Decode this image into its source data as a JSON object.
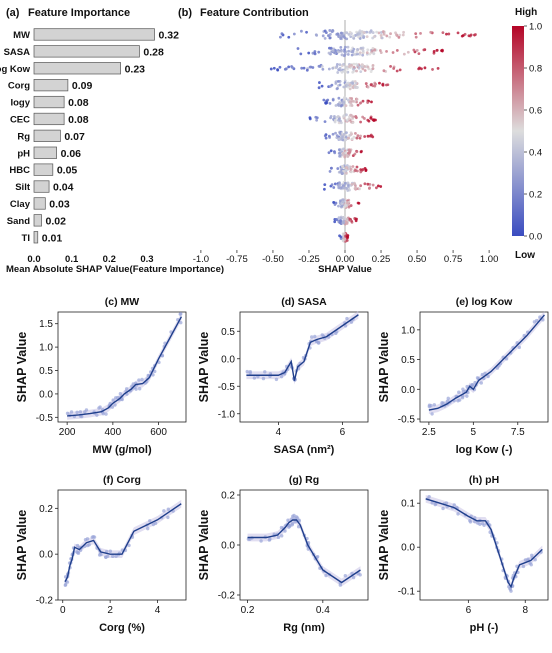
{
  "panel_a": {
    "label": "(a)",
    "title": "Feature Importance",
    "xlabel": "Mean Absolute SHAP Value(Feature Importance)",
    "bar_color": "#d3d3d3"
  },
  "panel_b": {
    "label": "(b)",
    "title": "Feature Contribution",
    "xlabel": "SHAP Value",
    "colorbar": {
      "high_label": "High",
      "low_label": "Low",
      "ticks": [
        0.0,
        0.2,
        0.4,
        0.6,
        0.8,
        1.0
      ],
      "low_color": "#3a4cc0",
      "mid_color": "#dddddd",
      "high_color": "#b40426"
    }
  },
  "chart_data": [
    {
      "id": "a",
      "type": "bar",
      "orientation": "horizontal",
      "categories": [
        "MW",
        "SASA",
        "log Kow",
        "Corg",
        "Iogy",
        "CEC",
        "Rg",
        "pH",
        "HBC",
        "Silt",
        "Clay",
        "Sand",
        "TI"
      ],
      "values": [
        0.32,
        0.28,
        0.23,
        0.09,
        0.08,
        0.08,
        0.07,
        0.06,
        0.05,
        0.04,
        0.03,
        0.02,
        0.01
      ],
      "value_labels": [
        "0.32",
        "0.28",
        "0.23",
        "0.09",
        "0.08",
        "0.08",
        "0.07",
        "0.06",
        "0.05",
        "0.04",
        "0.03",
        "0.02",
        "0.01"
      ],
      "xticks": [
        "0.0",
        "0.1",
        "0.2",
        "0.3"
      ],
      "xlim": [
        0,
        0.34
      ]
    },
    {
      "id": "b",
      "type": "scatter",
      "subtype": "beeswarm",
      "features": [
        "MW",
        "SASA",
        "log Kow",
        "Corg",
        "Iogy",
        "CEC",
        "Rg",
        "pH",
        "HBC",
        "Silt",
        "Clay",
        "Sand",
        "TI"
      ],
      "shap_range": [
        [
          -0.48,
          0.92
        ],
        [
          -0.35,
          0.72
        ],
        [
          -0.52,
          0.65
        ],
        [
          -0.18,
          0.3
        ],
        [
          -0.15,
          0.2
        ],
        [
          -0.25,
          0.22
        ],
        [
          -0.15,
          0.2
        ],
        [
          -0.12,
          0.12
        ],
        [
          -0.12,
          0.15
        ],
        [
          -0.15,
          0.25
        ],
        [
          -0.1,
          0.1
        ],
        [
          -0.08,
          0.08
        ],
        [
          -0.04,
          0.02
        ]
      ],
      "xticks": [
        "-1.0",
        "-0.75",
        "-0.50",
        "-0.25",
        "0.00",
        "0.25",
        "0.50",
        "0.75",
        "1.00"
      ],
      "xlim": [
        -1.02,
        1.02
      ]
    },
    {
      "id": "c",
      "label": "(c)",
      "title": "MW",
      "type": "line",
      "xlabel": "MW (g/mol)",
      "ylabel": "SHAP Value",
      "x": [
        200,
        250,
        300,
        350,
        380,
        400,
        430,
        450,
        480,
        500,
        530,
        560,
        600,
        650,
        700
      ],
      "y": [
        -0.47,
        -0.45,
        -0.42,
        -0.38,
        -0.3,
        -0.2,
        -0.1,
        0.0,
        0.1,
        0.2,
        0.22,
        0.35,
        0.75,
        1.2,
        1.65
      ],
      "xticks": [
        200,
        400,
        600
      ],
      "yticks": [
        -0.5,
        0.0,
        0.5,
        1.0,
        1.5
      ],
      "xlim": [
        160,
        720
      ],
      "ylim": [
        -0.6,
        1.75
      ]
    },
    {
      "id": "d",
      "label": "(d)",
      "title": "SASA",
      "type": "line",
      "xlabel": "SASA (nm²)",
      "ylabel": "SHAP Value",
      "x": [
        3.0,
        3.5,
        4.0,
        4.2,
        4.4,
        4.5,
        4.6,
        4.8,
        5.0,
        5.2,
        5.5,
        6.0,
        6.5
      ],
      "y": [
        -0.3,
        -0.3,
        -0.3,
        -0.25,
        -0.05,
        -0.4,
        -0.15,
        -0.05,
        0.3,
        0.35,
        0.4,
        0.6,
        0.8
      ],
      "xticks": [
        4,
        6
      ],
      "yticks": [
        -1.0,
        -0.5,
        0.0,
        0.5
      ],
      "xlim": [
        2.8,
        6.8
      ],
      "ylim": [
        -1.15,
        0.85
      ]
    },
    {
      "id": "e",
      "label": "(e)",
      "title": "log Kow",
      "type": "line",
      "xlabel": "log Kow (-)",
      "ylabel": "SHAP Value",
      "x": [
        2.5,
        3.0,
        3.5,
        4.0,
        4.3,
        4.6,
        4.8,
        5.0,
        5.3,
        6.0,
        7.0,
        8.0,
        9.0
      ],
      "y": [
        -0.35,
        -0.32,
        -0.25,
        -0.15,
        -0.1,
        -0.05,
        0.05,
        0.0,
        0.15,
        0.3,
        0.6,
        0.9,
        1.25
      ],
      "xticks": [
        2.5,
        5.0,
        7.5
      ],
      "yticks": [
        -0.5,
        0.0,
        0.5,
        1.0
      ],
      "xlim": [
        2.0,
        9.2
      ],
      "ylim": [
        -0.55,
        1.3
      ]
    },
    {
      "id": "f",
      "label": "(f)",
      "title": "Corg",
      "type": "line",
      "xlabel": "Corg (%)",
      "ylabel": "SHAP Value",
      "x": [
        0.1,
        0.2,
        0.3,
        0.4,
        0.5,
        0.7,
        1.0,
        1.3,
        1.6,
        2.0,
        2.5,
        3.0,
        4.0,
        5.0
      ],
      "y": [
        -0.12,
        -0.1,
        -0.05,
        -0.02,
        0.03,
        0.02,
        0.05,
        0.06,
        0.01,
        0.0,
        0.0,
        0.1,
        0.15,
        0.22
      ],
      "xticks": [
        0,
        2,
        4
      ],
      "yticks": [
        -0.2,
        0.0,
        0.2
      ],
      "xlim": [
        -0.2,
        5.2
      ],
      "ylim": [
        -0.2,
        0.28
      ]
    },
    {
      "id": "g",
      "label": "(g)",
      "title": "Rg",
      "type": "line",
      "xlabel": "Rg (nm)",
      "ylabel": "SHAP Value",
      "x": [
        0.2,
        0.25,
        0.28,
        0.3,
        0.31,
        0.32,
        0.33,
        0.34,
        0.36,
        0.38,
        0.4,
        0.45,
        0.5
      ],
      "y": [
        0.03,
        0.03,
        0.04,
        0.07,
        0.09,
        0.1,
        0.1,
        0.08,
        0.0,
        -0.05,
        -0.1,
        -0.15,
        -0.1
      ],
      "xticks": [
        0.2,
        0.4
      ],
      "yticks": [
        -0.2,
        0.0,
        0.2
      ],
      "xlim": [
        0.18,
        0.52
      ],
      "ylim": [
        -0.22,
        0.22
      ]
    },
    {
      "id": "h",
      "label": "(h)",
      "title": "pH",
      "type": "line",
      "xlabel": "pH (-)",
      "ylabel": "SHAP Value",
      "x": [
        4.5,
        5.0,
        5.5,
        6.0,
        6.3,
        6.6,
        6.8,
        7.0,
        7.2,
        7.4,
        7.5,
        7.6,
        7.8,
        8.2,
        8.6
      ],
      "y": [
        0.11,
        0.1,
        0.09,
        0.07,
        0.06,
        0.06,
        0.04,
        0.0,
        -0.04,
        -0.08,
        -0.09,
        -0.07,
        -0.04,
        -0.03,
        -0.005
      ],
      "xticks": [
        6,
        8
      ],
      "yticks": [
        -0.1,
        0.0,
        0.1
      ],
      "xlim": [
        4.3,
        8.8
      ],
      "ylim": [
        -0.12,
        0.13
      ]
    }
  ]
}
